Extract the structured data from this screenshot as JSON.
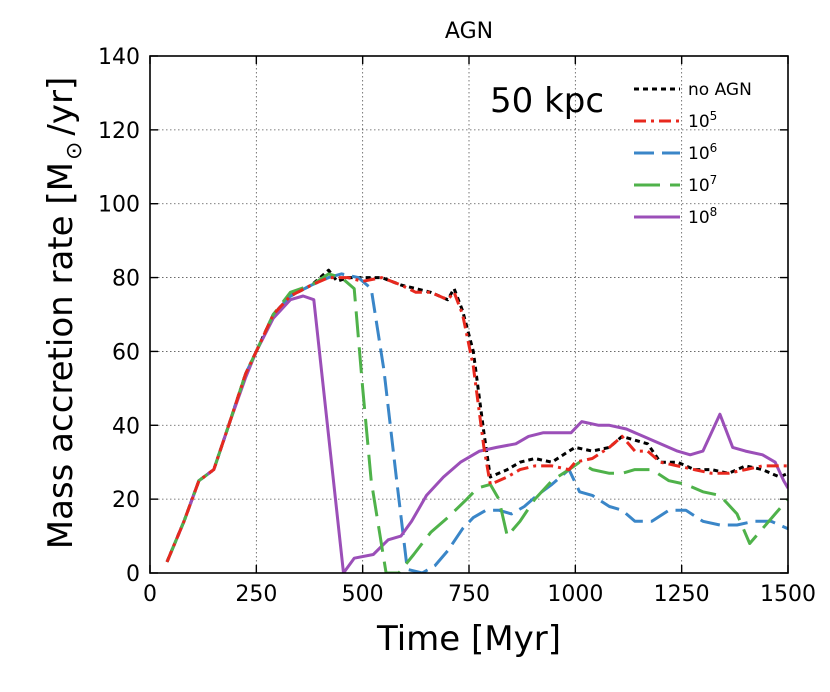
{
  "chart_data": {
    "type": "line",
    "title": "AGN",
    "annotation": "50 kpc",
    "xlabel": "Time [Myr]",
    "ylabel_main": "Mass accretion rate [M",
    "ylabel_sun": "⊙",
    "ylabel_end": "/yr]",
    "xlim": [
      0,
      1500
    ],
    "ylim": [
      0,
      140
    ],
    "xticks": [
      0,
      250,
      500,
      750,
      1000,
      1250,
      1500
    ],
    "yticks": [
      0,
      20,
      40,
      60,
      80,
      100,
      120,
      140
    ],
    "grid": true,
    "legend_position": "top-right",
    "series": [
      {
        "name": "no AGN",
        "base": "no AGN",
        "sup": "",
        "color": "#000000",
        "dash": "short",
        "x": [
          40,
          80,
          115,
          150,
          185,
          225,
          250,
          290,
          330,
          380,
          420,
          440,
          465,
          500,
          545,
          590,
          625,
          660,
          700,
          715,
          735,
          760,
          785,
          800,
          840,
          870,
          905,
          945,
          985,
          1000,
          1040,
          1080,
          1110,
          1140,
          1170,
          1200,
          1240,
          1280,
          1320,
          1360,
          1400,
          1440,
          1480,
          1500
        ],
        "y": [
          3,
          14,
          25,
          28,
          40,
          54,
          60,
          70,
          75,
          78,
          82,
          79,
          80,
          80,
          80,
          78,
          77,
          76,
          74,
          77,
          71,
          60,
          38,
          26,
          28,
          30,
          31,
          30,
          33,
          34,
          33,
          34,
          37,
          36,
          35,
          30,
          30,
          28,
          28,
          27,
          29,
          28,
          26,
          27
        ]
      },
      {
        "name": "10^5",
        "base": "10",
        "sup": "5",
        "color": "#e8281e",
        "dash": "dashdot",
        "x": [
          40,
          80,
          115,
          150,
          185,
          225,
          250,
          290,
          330,
          380,
          420,
          440,
          465,
          500,
          545,
          590,
          625,
          660,
          700,
          715,
          735,
          760,
          785,
          800,
          840,
          870,
          905,
          945,
          985,
          1000,
          1040,
          1080,
          1110,
          1140,
          1170,
          1200,
          1240,
          1280,
          1320,
          1360,
          1400,
          1440,
          1480,
          1500
        ],
        "y": [
          3,
          14,
          25,
          28,
          40,
          54,
          60,
          70,
          75,
          78,
          80,
          80,
          80,
          79,
          80,
          78,
          76,
          76,
          74,
          76,
          70,
          56,
          34,
          24,
          26,
          28,
          29,
          29,
          28,
          30,
          31,
          34,
          37,
          33,
          33,
          30,
          29,
          28,
          27,
          27,
          28,
          29,
          29,
          29
        ]
      },
      {
        "name": "10^6",
        "base": "10",
        "sup": "6",
        "color": "#3a86c8",
        "dash": "long",
        "x": [
          40,
          80,
          115,
          150,
          185,
          225,
          250,
          290,
          330,
          380,
          420,
          450,
          490,
          520,
          550,
          580,
          605,
          640,
          670,
          700,
          735,
          760,
          790,
          820,
          850,
          880,
          910,
          945,
          985,
          1010,
          1040,
          1080,
          1110,
          1140,
          1180,
          1220,
          1260,
          1300,
          1340,
          1380,
          1420,
          1460,
          1500
        ],
        "y": [
          3,
          14,
          25,
          28,
          40,
          54,
          60,
          70,
          75,
          78,
          80,
          81,
          80,
          77,
          55,
          25,
          1,
          0,
          2,
          6,
          12,
          15,
          17,
          17,
          16,
          18,
          21,
          24,
          28,
          22,
          21,
          18,
          17,
          14,
          14,
          17,
          17,
          14,
          13,
          13,
          14,
          14,
          12
        ]
      },
      {
        "name": "10^7",
        "base": "10",
        "sup": "7",
        "color": "#4fb24a",
        "dash": "longest",
        "x": [
          40,
          80,
          115,
          150,
          185,
          225,
          250,
          290,
          330,
          380,
          420,
          450,
          480,
          500,
          520,
          555,
          585,
          620,
          660,
          700,
          745,
          770,
          800,
          820,
          840,
          870,
          905,
          945,
          985,
          1010,
          1040,
          1080,
          1110,
          1140,
          1180,
          1220,
          1260,
          1300,
          1340,
          1380,
          1410,
          1440,
          1470,
          1500
        ],
        "y": [
          3,
          14,
          25,
          28,
          40,
          54,
          60,
          70,
          76,
          78,
          81,
          80,
          77,
          50,
          25,
          0,
          0,
          5,
          11,
          15,
          20,
          23,
          24,
          20,
          10,
          14,
          20,
          25,
          28,
          30,
          28,
          27,
          27,
          28,
          28,
          25,
          24,
          22,
          21,
          16,
          8,
          12,
          16,
          20
        ]
      },
      {
        "name": "10^8",
        "base": "10",
        "sup": "8",
        "color": "#9b4fb8",
        "dash": "solid",
        "x": [
          40,
          80,
          115,
          150,
          185,
          225,
          250,
          290,
          330,
          360,
          385,
          455,
          480,
          525,
          560,
          590,
          615,
          650,
          690,
          730,
          775,
          815,
          860,
          890,
          925,
          960,
          990,
          1015,
          1055,
          1080,
          1120,
          1160,
          1200,
          1240,
          1270,
          1300,
          1320,
          1340,
          1370,
          1400,
          1440,
          1470,
          1490,
          1500
        ],
        "y": [
          3,
          14,
          25,
          28,
          40,
          53,
          60,
          69,
          74,
          75,
          74,
          0,
          4,
          5,
          9,
          10,
          14,
          21,
          26,
          30,
          33,
          34,
          35,
          37,
          38,
          38,
          38,
          41,
          40,
          40,
          39,
          37,
          35,
          33,
          32,
          33,
          38,
          43,
          34,
          33,
          32,
          30,
          25,
          23
        ]
      }
    ]
  }
}
